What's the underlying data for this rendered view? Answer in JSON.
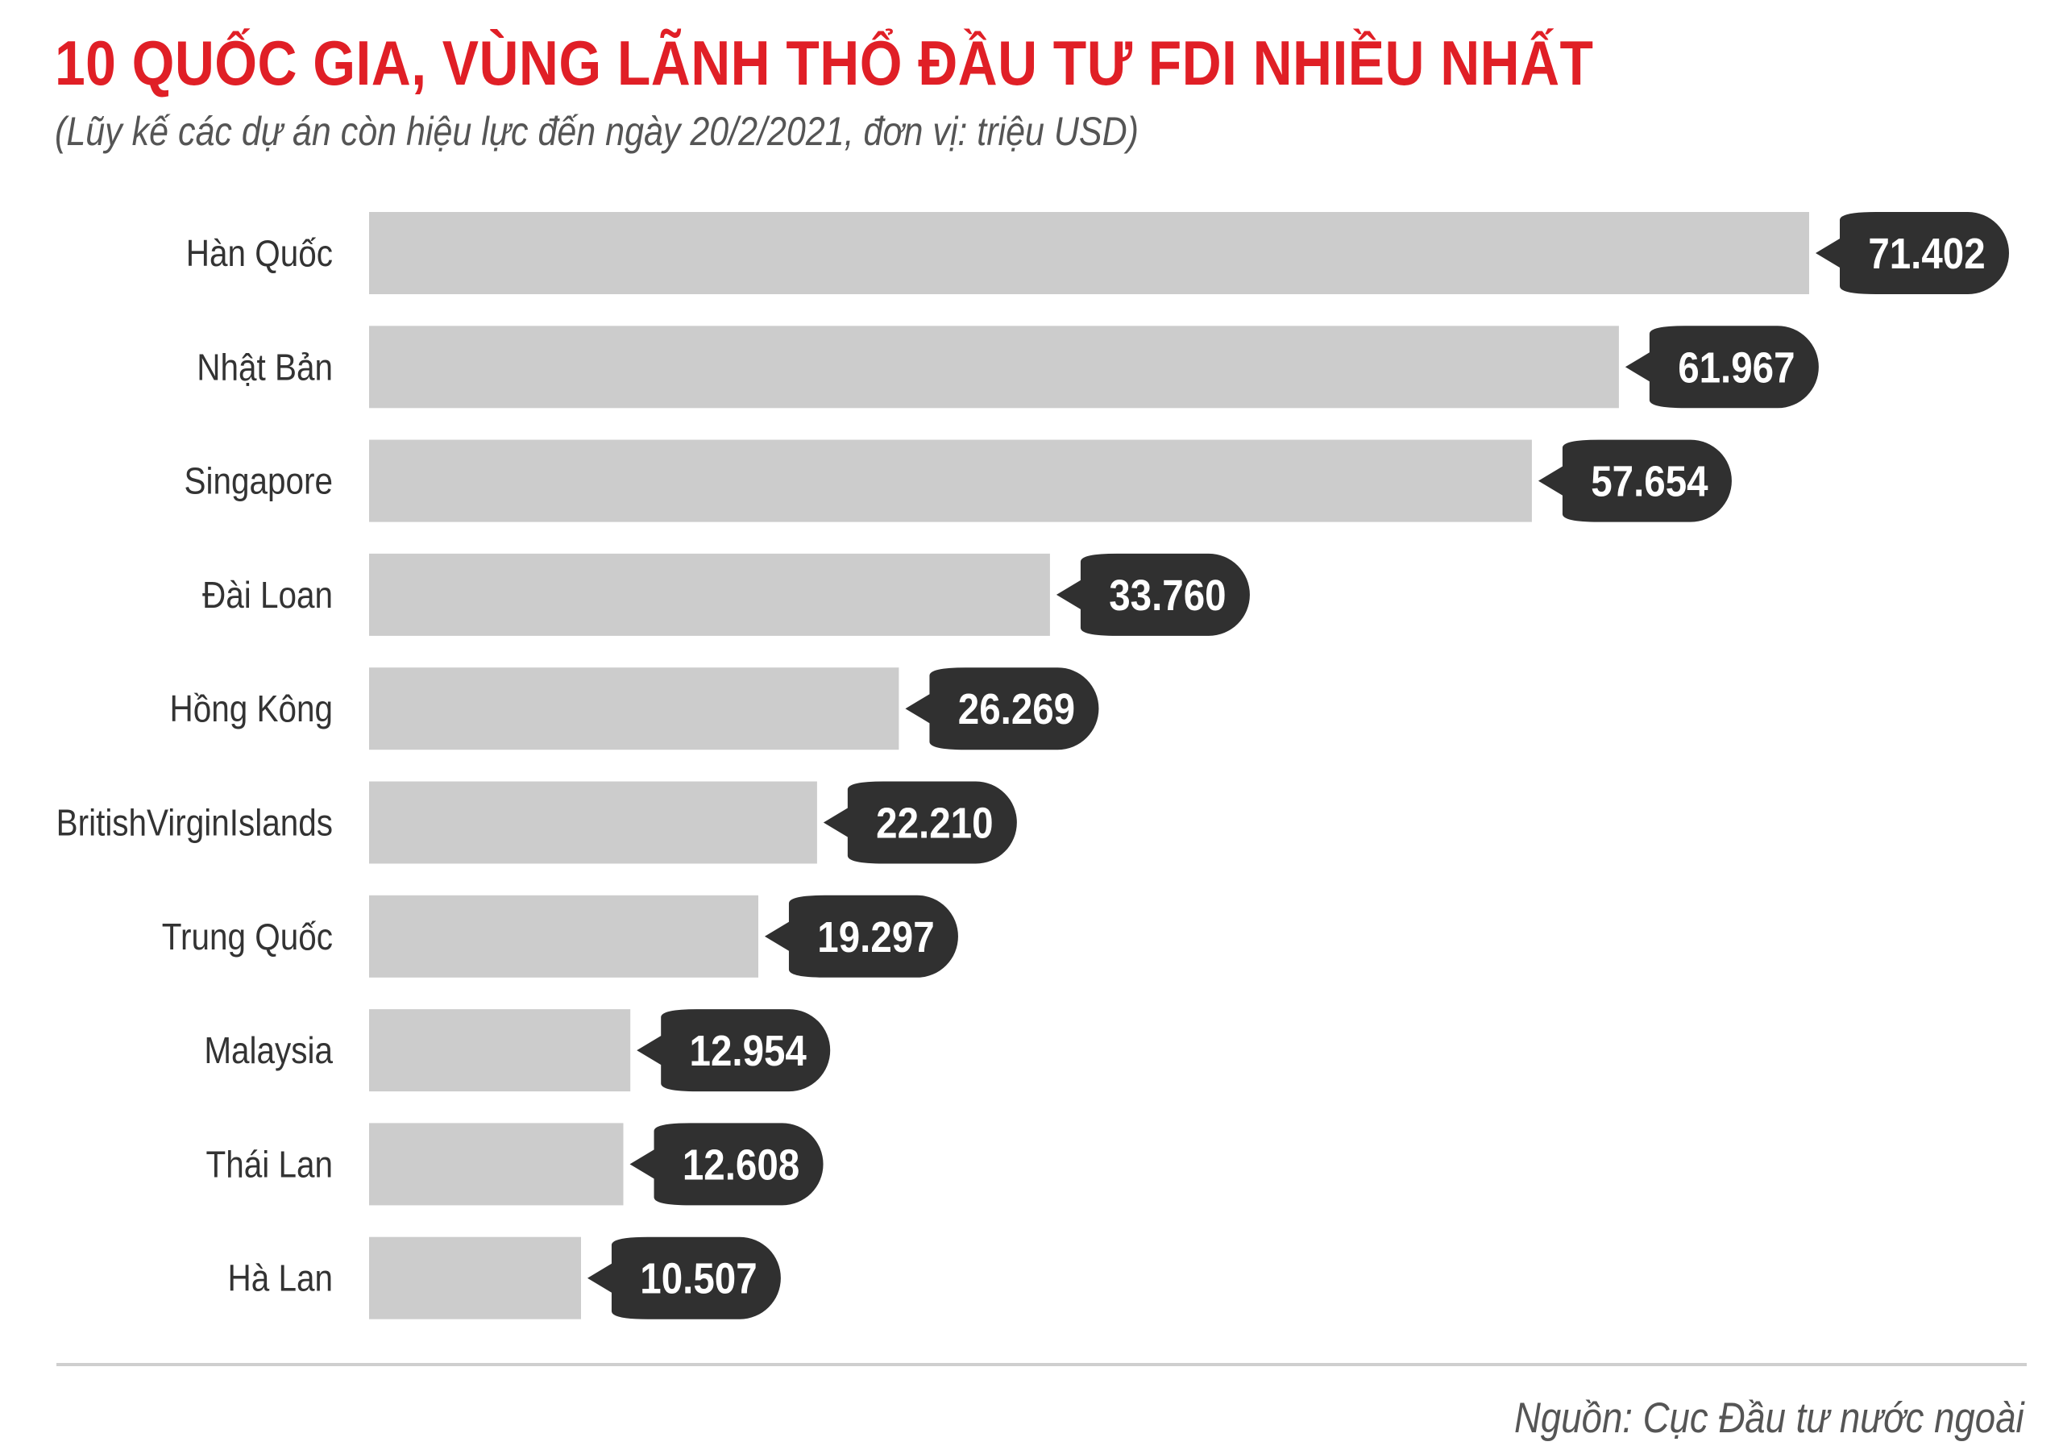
{
  "header": {
    "title": "10 QUỐC GIA, VÙNG LÃNH THỔ ĐẦU TƯ FDI NHIỀU NHẤT",
    "subtitle": "(Lũy kế các dự án còn hiệu lực đến ngày 20/2/2021, đơn vị: triệu USD)"
  },
  "footer": {
    "source": "Nguồn: Cục Đầu tư nước ngoài"
  },
  "colors": {
    "title": "#e01f26",
    "bar": "#cccccc",
    "value_label_bg": "#303030",
    "value_label_text": "#ffffff",
    "category_text": "#333333"
  },
  "chart_data": {
    "type": "bar",
    "orientation": "horizontal",
    "title": "10 QUỐC GIA, VÙNG LÃNH THỔ ĐẦU TƯ FDI NHIỀU NHẤT",
    "subtitle": "(Lũy kế các dự án còn hiệu lực đến ngày 20/2/2021, đơn vị: triệu USD)",
    "categories": [
      "Hàn Quốc",
      "Nhật Bản",
      "Singapore",
      "Đài Loan",
      "Hồng Kông",
      "BritishVirginIslands",
      "Trung Quốc",
      "Malaysia",
      "Thái Lan",
      "Hà Lan"
    ],
    "values": [
      71402,
      61967,
      57654,
      33760,
      26269,
      22210,
      19297,
      12954,
      12608,
      10507
    ],
    "value_labels": [
      "71.402",
      "61.967",
      "57.654",
      "33.760",
      "26.269",
      "22.210",
      "19.297",
      "12.954",
      "12.608",
      "10.507"
    ],
    "grid": false,
    "legend": "none",
    "axes_visible": false
  }
}
